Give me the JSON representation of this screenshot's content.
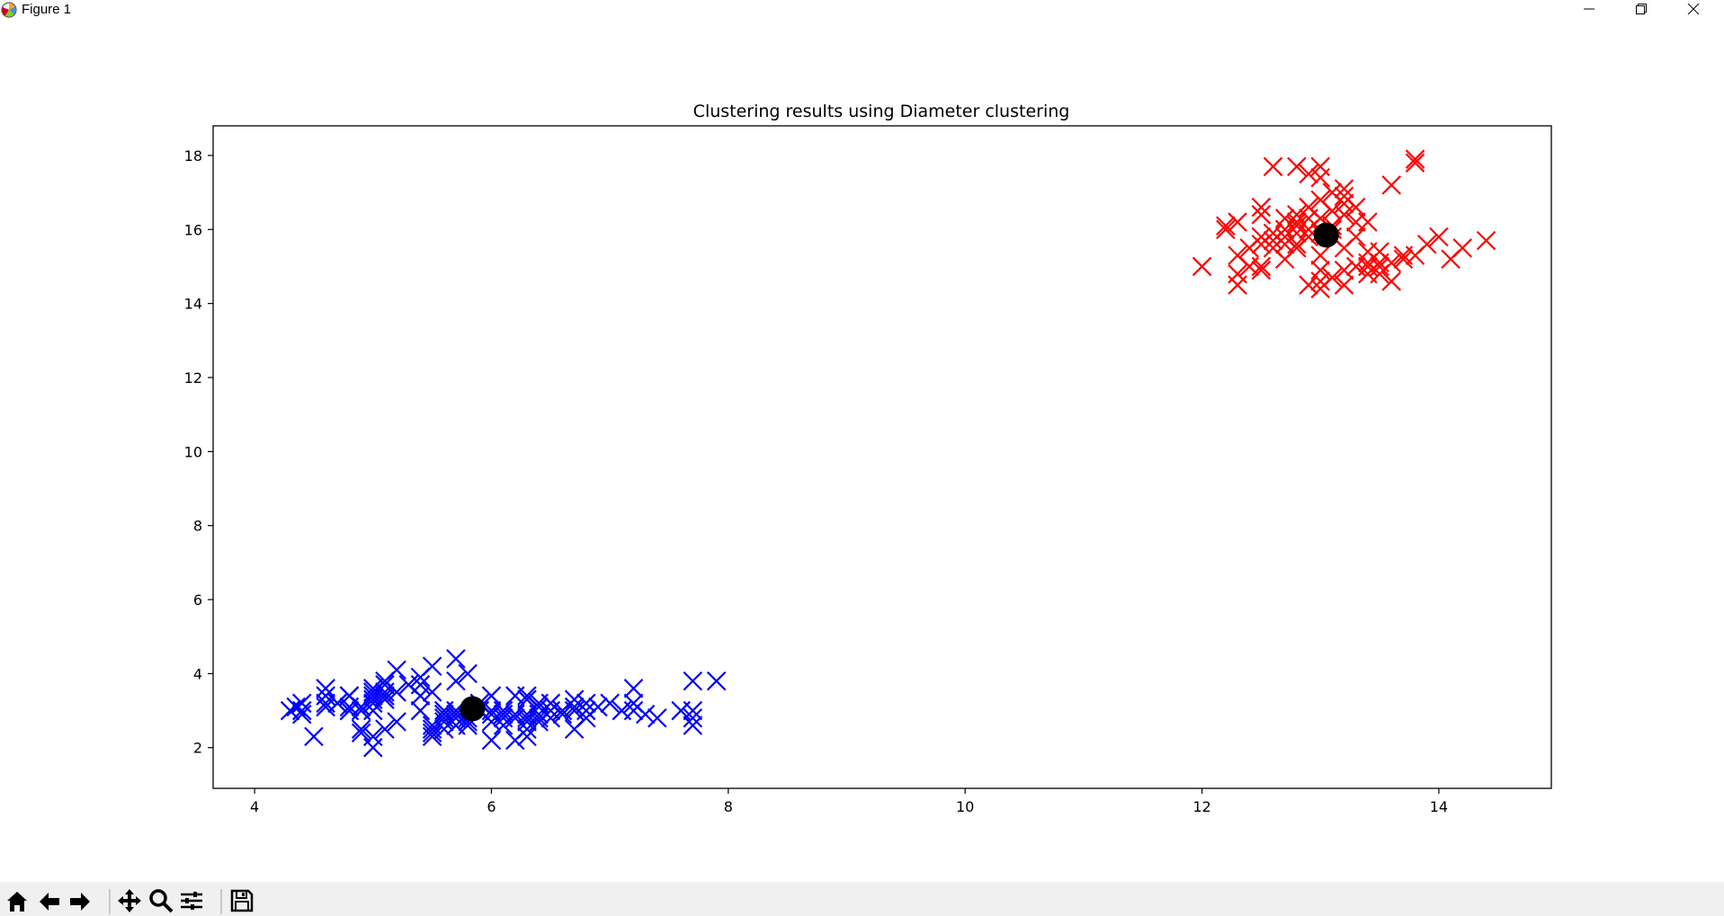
{
  "window": {
    "title": "Figure 1"
  },
  "toolbar": {
    "buttons": [
      "home-icon",
      "back-arrow-icon",
      "forward-arrow-icon",
      "pan-icon",
      "zoom-icon",
      "subplots-icon",
      "save-icon"
    ]
  },
  "chart_data": {
    "type": "scatter",
    "title": "Clustering results using Diameter clustering",
    "xlabel": "",
    "ylabel": "",
    "xlim": [
      3.65,
      14.95
    ],
    "ylim": [
      0.9,
      18.8
    ],
    "xticks": [
      4,
      6,
      8,
      10,
      12,
      14
    ],
    "yticks": [
      2,
      4,
      6,
      8,
      10,
      12,
      14,
      16,
      18
    ],
    "grid": false,
    "legend": "none",
    "series": [
      {
        "marker": "x",
        "color": "#0000ff",
        "points": [
          [
            4.3,
            3.0
          ],
          [
            4.35,
            3.1
          ],
          [
            4.4,
            2.9
          ],
          [
            4.4,
            3.2
          ],
          [
            4.4,
            3.0
          ],
          [
            4.5,
            2.3
          ],
          [
            4.6,
            3.6
          ],
          [
            4.6,
            3.4
          ],
          [
            4.6,
            3.1
          ],
          [
            4.6,
            3.2
          ],
          [
            4.7,
            3.2
          ],
          [
            4.7,
            3.2
          ],
          [
            4.8,
            3.4
          ],
          [
            4.8,
            3.0
          ],
          [
            4.8,
            3.1
          ],
          [
            4.8,
            3.0
          ],
          [
            4.8,
            3.4
          ],
          [
            4.9,
            3.1
          ],
          [
            4.9,
            3.0
          ],
          [
            4.9,
            2.5
          ],
          [
            4.9,
            2.4
          ],
          [
            4.9,
            3.1
          ],
          [
            5.0,
            3.6
          ],
          [
            5.0,
            3.4
          ],
          [
            5.0,
            3.0
          ],
          [
            5.0,
            3.5
          ],
          [
            5.0,
            2.0
          ],
          [
            5.0,
            2.3
          ],
          [
            5.0,
            3.3
          ],
          [
            5.0,
            3.2
          ],
          [
            5.1,
            3.5
          ],
          [
            5.1,
            3.8
          ],
          [
            5.1,
            3.7
          ],
          [
            5.1,
            3.3
          ],
          [
            5.1,
            3.4
          ],
          [
            5.1,
            2.5
          ],
          [
            5.2,
            3.5
          ],
          [
            5.2,
            4.1
          ],
          [
            5.2,
            2.7
          ],
          [
            5.3,
            3.7
          ],
          [
            5.4,
            3.9
          ],
          [
            5.4,
            3.4
          ],
          [
            5.4,
            3.0
          ],
          [
            5.4,
            3.7
          ],
          [
            5.5,
            2.4
          ],
          [
            5.5,
            2.6
          ],
          [
            5.5,
            4.2
          ],
          [
            5.5,
            3.5
          ],
          [
            5.5,
            2.3
          ],
          [
            5.5,
            2.5
          ],
          [
            5.6,
            2.9
          ],
          [
            5.6,
            2.7
          ],
          [
            5.6,
            3.0
          ],
          [
            5.6,
            2.5
          ],
          [
            5.6,
            2.8
          ],
          [
            5.7,
            4.4
          ],
          [
            5.7,
            3.8
          ],
          [
            5.7,
            2.8
          ],
          [
            5.7,
            2.6
          ],
          [
            5.7,
            3.0
          ],
          [
            5.7,
            2.9
          ],
          [
            5.8,
            4.0
          ],
          [
            5.8,
            2.7
          ],
          [
            5.8,
            2.6
          ],
          [
            5.8,
            2.8
          ],
          [
            5.9,
            3.0
          ],
          [
            5.9,
            3.2
          ],
          [
            6.0,
            2.2
          ],
          [
            6.0,
            2.9
          ],
          [
            6.0,
            3.4
          ],
          [
            6.0,
            2.7
          ],
          [
            6.0,
            3.0
          ],
          [
            6.1,
            2.8
          ],
          [
            6.1,
            3.0
          ],
          [
            6.1,
            2.6
          ],
          [
            6.1,
            2.9
          ],
          [
            6.2,
            2.2
          ],
          [
            6.2,
            2.9
          ],
          [
            6.2,
            3.4
          ],
          [
            6.2,
            2.8
          ],
          [
            6.3,
            3.3
          ],
          [
            6.3,
            2.5
          ],
          [
            6.3,
            2.3
          ],
          [
            6.3,
            2.9
          ],
          [
            6.3,
            2.7
          ],
          [
            6.3,
            3.4
          ],
          [
            6.3,
            2.8
          ],
          [
            6.4,
            3.2
          ],
          [
            6.4,
            2.7
          ],
          [
            6.4,
            2.8
          ],
          [
            6.4,
            3.1
          ],
          [
            6.4,
            2.9
          ],
          [
            6.5,
            2.8
          ],
          [
            6.5,
            3.0
          ],
          [
            6.5,
            3.2
          ],
          [
            6.6,
            2.9
          ],
          [
            6.6,
            3.0
          ],
          [
            6.7,
            3.1
          ],
          [
            6.7,
            3.0
          ],
          [
            6.7,
            2.5
          ],
          [
            6.7,
            3.3
          ],
          [
            6.8,
            2.8
          ],
          [
            6.8,
            3.2
          ],
          [
            6.8,
            3.0
          ],
          [
            6.9,
            3.1
          ],
          [
            7.0,
            3.2
          ],
          [
            7.1,
            3.0
          ],
          [
            7.2,
            3.6
          ],
          [
            7.2,
            3.2
          ],
          [
            7.2,
            3.0
          ],
          [
            7.3,
            2.9
          ],
          [
            7.4,
            2.8
          ],
          [
            7.6,
            3.0
          ],
          [
            7.7,
            3.8
          ],
          [
            7.7,
            2.6
          ],
          [
            7.7,
            2.8
          ],
          [
            7.7,
            3.0
          ],
          [
            7.9,
            3.8
          ]
        ]
      },
      {
        "marker": "x",
        "color": "#ff0000",
        "points": [
          [
            12.0,
            15.0
          ],
          [
            12.2,
            16.1
          ],
          [
            12.2,
            16.0
          ],
          [
            12.3,
            16.2
          ],
          [
            12.3,
            15.3
          ],
          [
            12.3,
            14.8
          ],
          [
            12.3,
            14.5
          ],
          [
            12.4,
            15.0
          ],
          [
            12.4,
            15.5
          ],
          [
            12.5,
            15.6
          ],
          [
            12.5,
            15.8
          ],
          [
            12.5,
            16.4
          ],
          [
            12.5,
            14.9
          ],
          [
            12.5,
            16.6
          ],
          [
            12.5,
            15.0
          ],
          [
            12.6,
            15.5
          ],
          [
            12.6,
            15.7
          ],
          [
            12.6,
            15.9
          ],
          [
            12.6,
            17.7
          ],
          [
            12.7,
            15.2
          ],
          [
            12.7,
            15.6
          ],
          [
            12.7,
            16.0
          ],
          [
            12.7,
            16.3
          ],
          [
            12.7,
            15.8
          ],
          [
            12.8,
            16.1
          ],
          [
            12.8,
            15.9
          ],
          [
            12.8,
            16.4
          ],
          [
            12.8,
            15.5
          ],
          [
            12.8,
            17.7
          ],
          [
            12.8,
            16.2
          ],
          [
            12.8,
            15.6
          ],
          [
            12.9,
            16.6
          ],
          [
            12.9,
            15.8
          ],
          [
            12.9,
            16.0
          ],
          [
            12.9,
            17.5
          ],
          [
            12.9,
            16.3
          ],
          [
            12.9,
            14.5
          ],
          [
            13.0,
            15.9
          ],
          [
            13.0,
            16.3
          ],
          [
            13.0,
            16.8
          ],
          [
            13.0,
            14.9
          ],
          [
            13.0,
            14.6
          ],
          [
            13.0,
            17.7
          ],
          [
            13.0,
            14.4
          ],
          [
            13.0,
            15.3
          ],
          [
            13.0,
            17.4
          ],
          [
            13.1,
            17.0
          ],
          [
            13.1,
            14.7
          ],
          [
            13.1,
            15.8
          ],
          [
            13.1,
            16.1
          ],
          [
            13.1,
            16.5
          ],
          [
            13.1,
            16.0
          ],
          [
            13.2,
            16.9
          ],
          [
            13.2,
            15.5
          ],
          [
            13.2,
            14.9
          ],
          [
            13.2,
            16.4
          ],
          [
            13.2,
            16.7
          ],
          [
            13.2,
            14.5
          ],
          [
            13.2,
            17.1
          ],
          [
            13.3,
            15.8
          ],
          [
            13.3,
            16.6
          ],
          [
            13.3,
            15.0
          ],
          [
            13.3,
            16.2
          ],
          [
            13.4,
            15.1
          ],
          [
            13.4,
            14.8
          ],
          [
            13.4,
            16.2
          ],
          [
            13.4,
            15.4
          ],
          [
            13.4,
            15.0
          ],
          [
            13.5,
            14.8
          ],
          [
            13.5,
            15.1
          ],
          [
            13.5,
            15.4
          ],
          [
            13.5,
            15.0
          ],
          [
            13.6,
            15.1
          ],
          [
            13.6,
            14.6
          ],
          [
            13.6,
            17.2
          ],
          [
            13.7,
            15.2
          ],
          [
            13.7,
            15.3
          ],
          [
            13.8,
            17.8
          ],
          [
            13.8,
            17.9
          ],
          [
            13.8,
            15.3
          ],
          [
            13.9,
            15.6
          ],
          [
            14.0,
            15.8
          ],
          [
            14.1,
            15.2
          ],
          [
            14.2,
            15.5
          ],
          [
            14.4,
            15.7
          ]
        ]
      },
      {
        "marker": "o",
        "color": "#000000",
        "points": [
          [
            5.84,
            3.05
          ],
          [
            13.05,
            15.85
          ]
        ]
      }
    ]
  }
}
